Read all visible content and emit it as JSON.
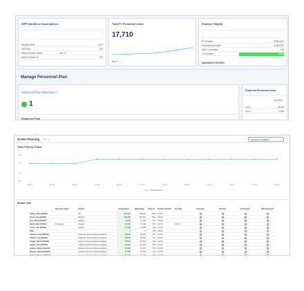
{
  "assumptions": {
    "title": "WFP Workforce Assumptions",
    "rows": [
      {
        "label": "Benefits Rate",
        "value": "25%"
      },
      {
        "label": "Tax Rate",
        "value": "0%"
      },
      {
        "label": "Merit Increase Month",
        "value": "Jan 21"
      },
      {
        "label": "Merit Increase %",
        "value": "0%"
      }
    ]
  },
  "costs": {
    "title": "Total FY Personnel Costs",
    "value": "17,710",
    "period": "Apr 21"
  },
  "expense": {
    "title": "Expense Targets",
    "rows": [
      {
        "label": "PY Actuals",
        "value": "8,583,417"
      },
      {
        "label": "Forecasted Budget",
        "value": "3,286,331"
      },
      {
        "label": "Max % Increase",
        "value": "0%"
      },
      {
        "label": "% Increase",
        "value": "62%"
      }
    ],
    "footer": "Operations (TAD001)"
  },
  "manage": {
    "title": "Manage Personnel Plan",
    "link": "Approved New Headcount >",
    "count": "1",
    "section": "Employee Plan"
  },
  "projected": {
    "title": "Projected Personnel Costs",
    "col": "Q4 FY21",
    "rows": [
      {
        "label": "Salary",
        "value": "35,000"
      },
      {
        "label": "Bonus",
        "value": "3,500"
      }
    ]
  },
  "roster": {
    "title": "Roster Planning",
    "dropdown": "Operations (TAD001)",
    "chart_title": "Total FTEs by Period",
    "legend": "Total Headcount",
    "plan_title": "Roster Plan"
  },
  "chart_data": {
    "type": "line",
    "title": "Total FTEs by Period",
    "categories": [
      "Jan 21",
      "Feb 21",
      "Mar 21",
      "Apr 21",
      "May 21",
      "Jun 21",
      "Jul 21",
      "Aug 21",
      "Sep 21",
      "Oct 21",
      "Nov 21",
      "Dec 21"
    ],
    "series": [
      {
        "name": "Total Headcount",
        "values": [
          14,
          14,
          14,
          15,
          15,
          15,
          15,
          15,
          15,
          15,
          15,
          15
        ]
      }
    ],
    "yticks": [
      "16",
      "14",
      "12",
      "10"
    ],
    "ylim": [
      10,
      16
    ],
    "color": "#5bc0d8"
  },
  "table": {
    "headers": [
      "",
      "Movement Status",
      "Position",
      "Annual Salary",
      "Market Rate",
      "Bonus %",
      "Position Start Date",
      "End Date",
      "Promoted",
      "Transfer?",
      "Terminated?",
      "TBH Employee?"
    ],
    "rows": [
      [
        "Abbey, Jane (E0003)",
        "",
        "VP",
        "140,000",
        "138,000",
        "10%",
        "3/1/20",
        ""
      ],
      [
        "Poole, Jim (E0002)",
        "",
        "Director",
        "118,000",
        "115,333",
        "10%",
        "3/1/19",
        ""
      ],
      [
        "Doe, Cindy (E0003)",
        "",
        "Analyst",
        "76,000",
        "71,182",
        "5%",
        "2/1/19",
        ""
      ],
      [
        "Smith, Bob (E0004)",
        "Promoted",
        "Analyst",
        "81,000",
        "71,182",
        "5%",
        "1/1/19",
        "4/24/21"
      ],
      [
        "Jones, Jim (E0011)",
        "",
        "Analyst",
        "75,000",
        "71,182",
        "5%",
        "1/1/19",
        ""
      ],
      [
        "TBD",
        "",
        "",
        "0",
        "0",
        "0%",
        "4/6/21",
        ""
      ],
      [
        "Abrams, Sam (E0006)",
        "",
        "Customer Success Representative",
        "48,000",
        "49,176",
        "5%",
        "1/1/19",
        ""
      ],
      [
        "Adams, Lisa (E0007)",
        "",
        "Customer Success Representative",
        "48,000",
        "49,176",
        "5%",
        "1/1/19",
        ""
      ],
      [
        "Ariggs, Sarah (E0008)",
        "",
        "Customer Success Representative",
        "49,500",
        "49,176",
        "5%",
        "1/1/19",
        ""
      ],
      [
        "Hawks, Tom (E0009)",
        "",
        "Customer Success Representative",
        "52,500",
        "49,176",
        "5%",
        "1/1/19",
        ""
      ],
      [
        "Adams, James (E0010)",
        "",
        "Customer Success Representative",
        "51,000",
        "49,176",
        "5%",
        "1/1/19",
        ""
      ],
      [
        "Bishop, Patrick (E0012)",
        "",
        "Customer Success Representative",
        "47,000",
        "49,176",
        "5%",
        "1/1/19",
        ""
      ],
      [
        "Barker, Eleanor (E0013)",
        "",
        "Customer Success Representative",
        "51,100",
        "49,176",
        "5%",
        "1/1/19",
        ""
      ]
    ]
  }
}
